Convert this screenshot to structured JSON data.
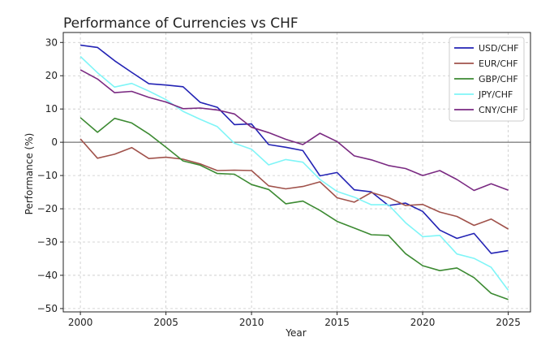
{
  "chart_data": {
    "type": "line",
    "title": "Performance of Currencies vs CHF",
    "xlabel": "Year",
    "ylabel": "Performance (%)",
    "xlim": [
      1999,
      2026.3
    ],
    "ylim": [
      -51,
      33
    ],
    "grid": true,
    "legend_position": "top-right",
    "x_ticks": [
      2000,
      2005,
      2010,
      2015,
      2020,
      2025
    ],
    "y_ticks": [
      -50,
      -40,
      -30,
      -20,
      -10,
      0,
      10,
      20,
      30
    ],
    "zero_line": 0,
    "x": [
      2000,
      2001,
      2002,
      2003,
      2004,
      2005,
      2006,
      2007,
      2008,
      2009,
      2010,
      2011,
      2012,
      2013,
      2014,
      2015,
      2016,
      2017,
      2018,
      2019,
      2020,
      2021,
      2022,
      2023,
      2024,
      2025
    ],
    "series": [
      {
        "name": "USD/CHF",
        "color": "#2323b4",
        "values": [
          29.2,
          28.5,
          24.5,
          21.0,
          17.6,
          17.2,
          16.7,
          12.0,
          10.5,
          5.3,
          5.5,
          -0.7,
          -1.5,
          -2.5,
          -10.1,
          -9.1,
          -14.3,
          -14.9,
          -19.0,
          -18.3,
          -20.8,
          -26.4,
          -28.9,
          -27.4,
          -33.4,
          -32.6
        ]
      },
      {
        "name": "EUR/CHF",
        "color": "#a0524b",
        "values": [
          1.0,
          -4.8,
          -3.6,
          -1.6,
          -4.9,
          -4.5,
          -5.1,
          -6.5,
          -8.5,
          -8.4,
          -8.5,
          -13.1,
          -14.0,
          -13.3,
          -11.9,
          -16.7,
          -18.0,
          -15.1,
          -16.6,
          -19.0,
          -18.7,
          -21.0,
          -22.3,
          -25.0,
          -23.1,
          -26.1
        ]
      },
      {
        "name": "GBP/CHF",
        "color": "#3c8a32",
        "values": [
          7.4,
          3.0,
          7.2,
          5.8,
          2.5,
          -1.5,
          -5.6,
          -6.9,
          -9.4,
          -9.6,
          -12.7,
          -14.2,
          -18.5,
          -17.7,
          -20.5,
          -23.8,
          -25.8,
          -27.8,
          -28.0,
          -33.5,
          -37.1,
          -38.6,
          -37.8,
          -40.7,
          -45.4,
          -47.3
        ]
      },
      {
        "name": "JPY/CHF",
        "color": "#7ff5f7",
        "values": [
          25.8,
          20.9,
          16.6,
          17.7,
          15.4,
          12.8,
          9.3,
          6.9,
          4.7,
          -0.3,
          -2.1,
          -6.8,
          -5.2,
          -6.0,
          -11.2,
          -14.8,
          -16.5,
          -18.8,
          -18.8,
          -24.2,
          -28.4,
          -28.0,
          -33.6,
          -34.9,
          -37.6,
          -44.5
        ]
      },
      {
        "name": "CNY/CHF",
        "color": "#7a2a82",
        "values": [
          21.8,
          19.0,
          14.9,
          15.3,
          13.5,
          12.1,
          10.1,
          10.3,
          9.7,
          8.5,
          4.5,
          2.9,
          0.9,
          -0.7,
          2.7,
          0.2,
          -4.1,
          -5.3,
          -7.0,
          -7.9,
          -10.0,
          -8.5,
          -11.2,
          -14.5,
          -12.5,
          -14.4
        ]
      }
    ]
  }
}
